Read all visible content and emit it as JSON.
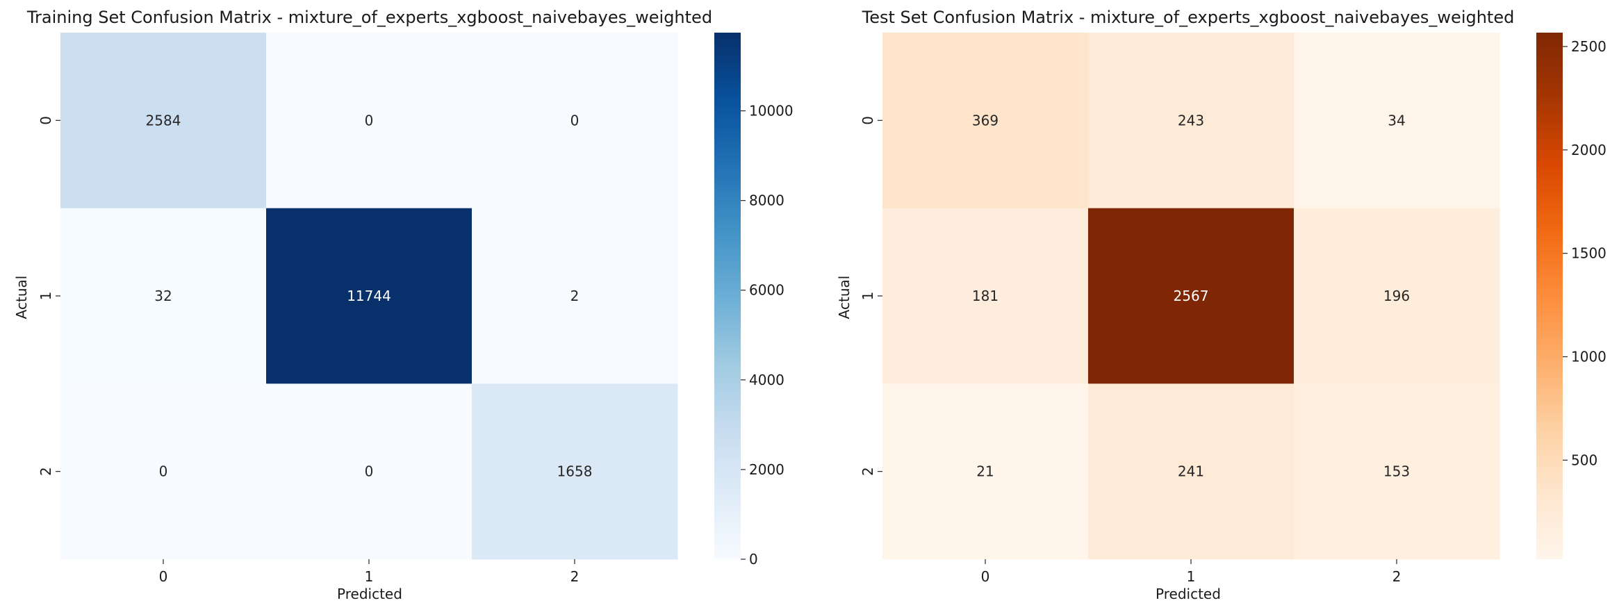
{
  "chart_data": [
    {
      "type": "heatmap",
      "title": "Training Set Confusion Matrix - mixture_of_experts_xgboost_naivebayes_weighted",
      "xlabel": "Predicted",
      "ylabel": "Actual",
      "x_categories": [
        "0",
        "1",
        "2"
      ],
      "y_categories": [
        "0",
        "1",
        "2"
      ],
      "matrix": [
        [
          2584,
          0,
          0
        ],
        [
          32,
          11744,
          2
        ],
        [
          0,
          0,
          1658
        ]
      ],
      "colormap": "Blues",
      "colormap_stops": [
        "#f7fbff",
        "#deebf7",
        "#c6dbef",
        "#9ecae1",
        "#6baed6",
        "#4292c6",
        "#2171b5",
        "#08519c",
        "#08306b"
      ],
      "vmin": 0,
      "vmax": 11744,
      "colorbar_ticks": [
        0,
        2000,
        4000,
        6000,
        8000,
        10000
      ]
    },
    {
      "type": "heatmap",
      "title": "Test Set Confusion Matrix - mixture_of_experts_xgboost_naivebayes_weighted",
      "xlabel": "Predicted",
      "ylabel": "Actual",
      "x_categories": [
        "0",
        "1",
        "2"
      ],
      "y_categories": [
        "0",
        "1",
        "2"
      ],
      "matrix": [
        [
          369,
          243,
          34
        ],
        [
          181,
          2567,
          196
        ],
        [
          21,
          241,
          153
        ]
      ],
      "colormap": "Oranges",
      "colormap_stops": [
        "#fff5eb",
        "#fee6ce",
        "#fdd0a2",
        "#fdae6b",
        "#fd8d3c",
        "#f16913",
        "#d94801",
        "#a63603",
        "#7f2704"
      ],
      "vmin": 21,
      "vmax": 2567,
      "colorbar_ticks": [
        500,
        1000,
        1500,
        2000,
        2500
      ]
    }
  ]
}
